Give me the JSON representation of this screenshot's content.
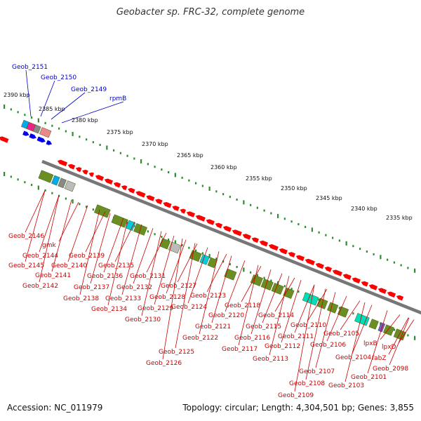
{
  "title": "Geobacter sp. FRC-32, complete genome",
  "accession": "Accession: NC_011979",
  "summary": "Topology: circular; Length: 4,304,501 bp; Genes: 3,855",
  "colors": {
    "gene_forward": "#ff0000",
    "gene_reverse": "#0000ee",
    "cds_block": "#6b8e23",
    "cds_alt": "#00ddbb",
    "backbone": "#777777",
    "tick": "#2e8b2e",
    "label_red": "#cc0000",
    "label_blue": "#0000cc"
  },
  "kbp_labels": [
    "2390 kbp",
    "2385 kbp",
    "2380 kbp",
    "2375 kbp",
    "2370 kbp",
    "2365 kbp",
    "2360 kbp",
    "2355 kbp",
    "2350 kbp",
    "2345 kbp",
    "2340 kbp",
    "2335 kbp"
  ],
  "blue_labels": [
    "Geob_2151",
    "Geob_2150",
    "Geob_2149",
    "rpmB"
  ],
  "red_labels": [
    "Geob_2146",
    "gmk",
    "Geob_2144",
    "Geob_2145",
    "Geob_2141",
    "Geob_2142",
    "Geob_2140",
    "Geob_2139",
    "Geob_2138",
    "Geob_2137",
    "Geob_2136",
    "Geob_2135",
    "Geob_2134",
    "Geob_2133",
    "Geob_2132",
    "Geob_2131",
    "Geob_2130",
    "Geob_2129",
    "Geob_2128",
    "Geob_2127",
    "Geob_2126",
    "Geob_2125",
    "Geob_2124",
    "Geob_2123",
    "Geob_2122",
    "Geob_2121",
    "Geob_2120",
    "Geob_2118",
    "Geob_2117",
    "Geob_2116",
    "Geob_2115",
    "Geob_2114",
    "Geob_2113",
    "Geob_2112",
    "Geob_2111",
    "Geob_2110",
    "Geob_2109",
    "Geob_2108",
    "Geob_2107",
    "Geob_2106",
    "Geob_2105",
    "Geob_2104",
    "Geob_2103",
    "Geob_2101",
    "lpxB",
    "lpxD",
    "fabZ",
    "Geob_2098"
  ]
}
